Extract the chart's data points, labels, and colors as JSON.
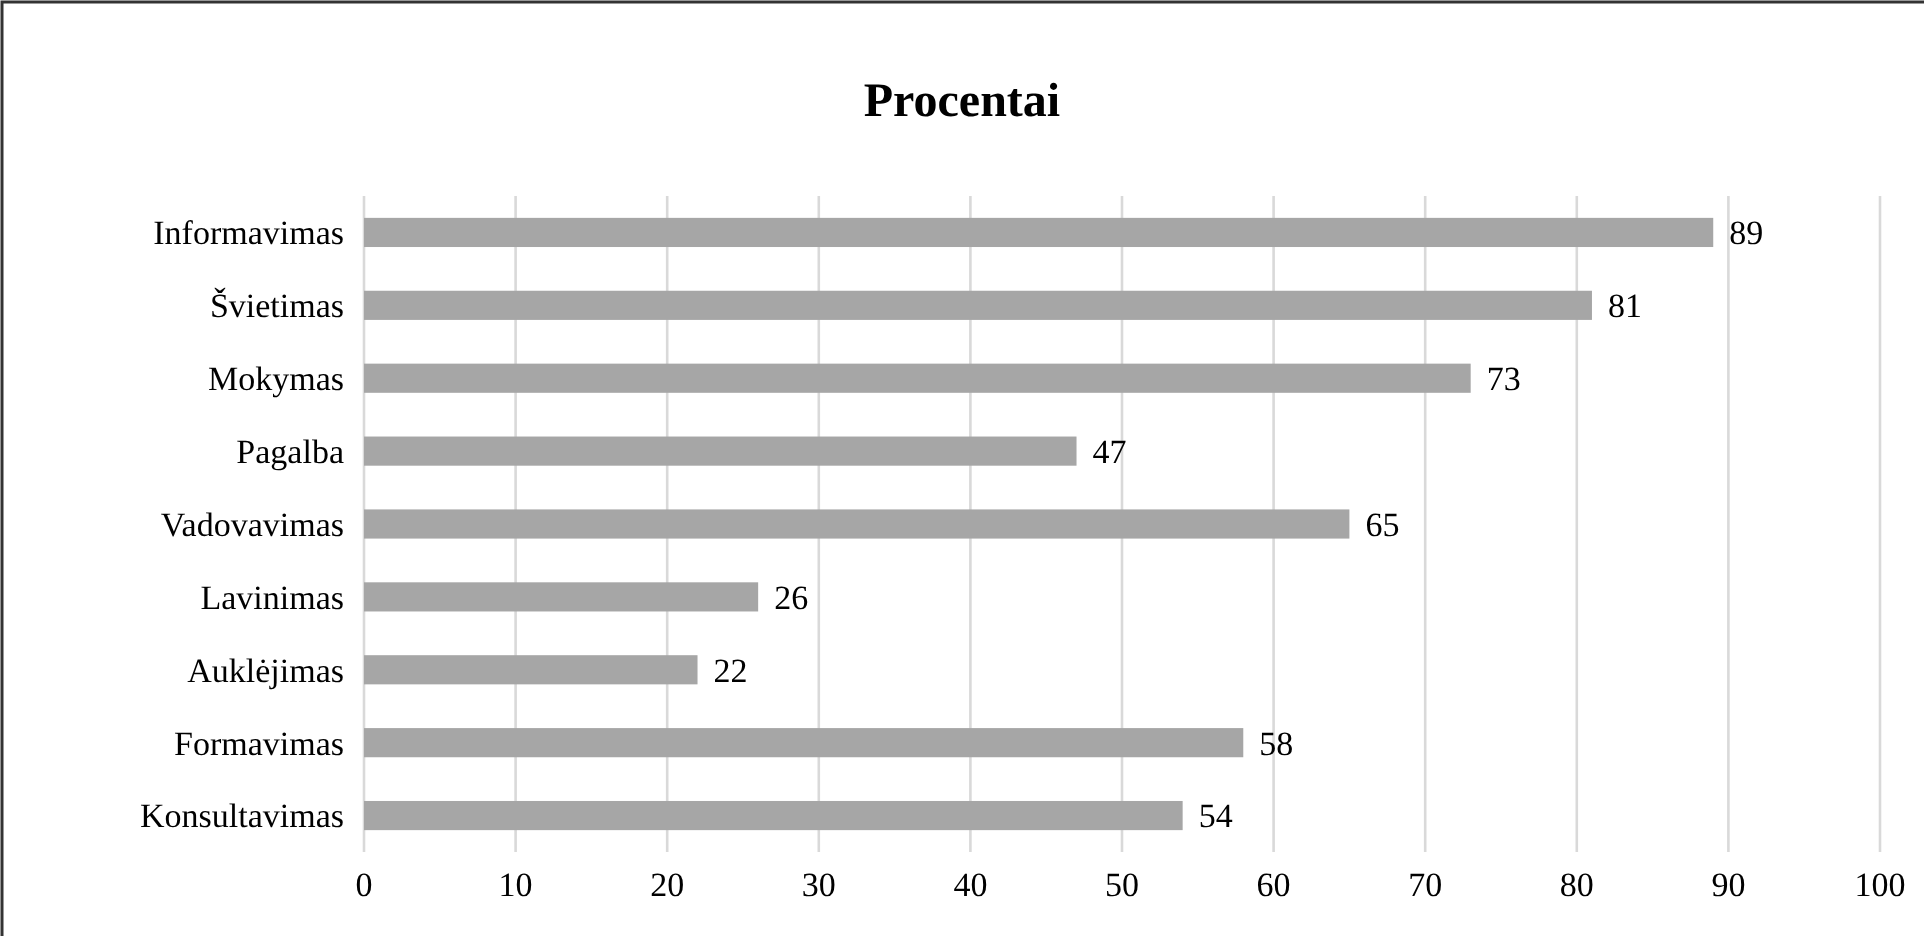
{
  "chart_data": {
    "type": "bar",
    "orientation": "horizontal",
    "title": "Procentai",
    "categories": [
      "Informavimas",
      "Švietimas",
      "Mokymas",
      "Pagalba",
      "Vadovavimas",
      "Lavinimas",
      "Auklėjimas",
      "Formavimas",
      "Konsultavimas"
    ],
    "values": [
      89,
      81,
      73,
      47,
      65,
      26,
      22,
      58,
      54
    ],
    "color": "#a6a6a6",
    "data_labels": true,
    "grid": "x",
    "xlim": [
      0,
      100
    ],
    "xticks": [
      0,
      10,
      20,
      30,
      40,
      50,
      60,
      70,
      80,
      90,
      100
    ]
  }
}
